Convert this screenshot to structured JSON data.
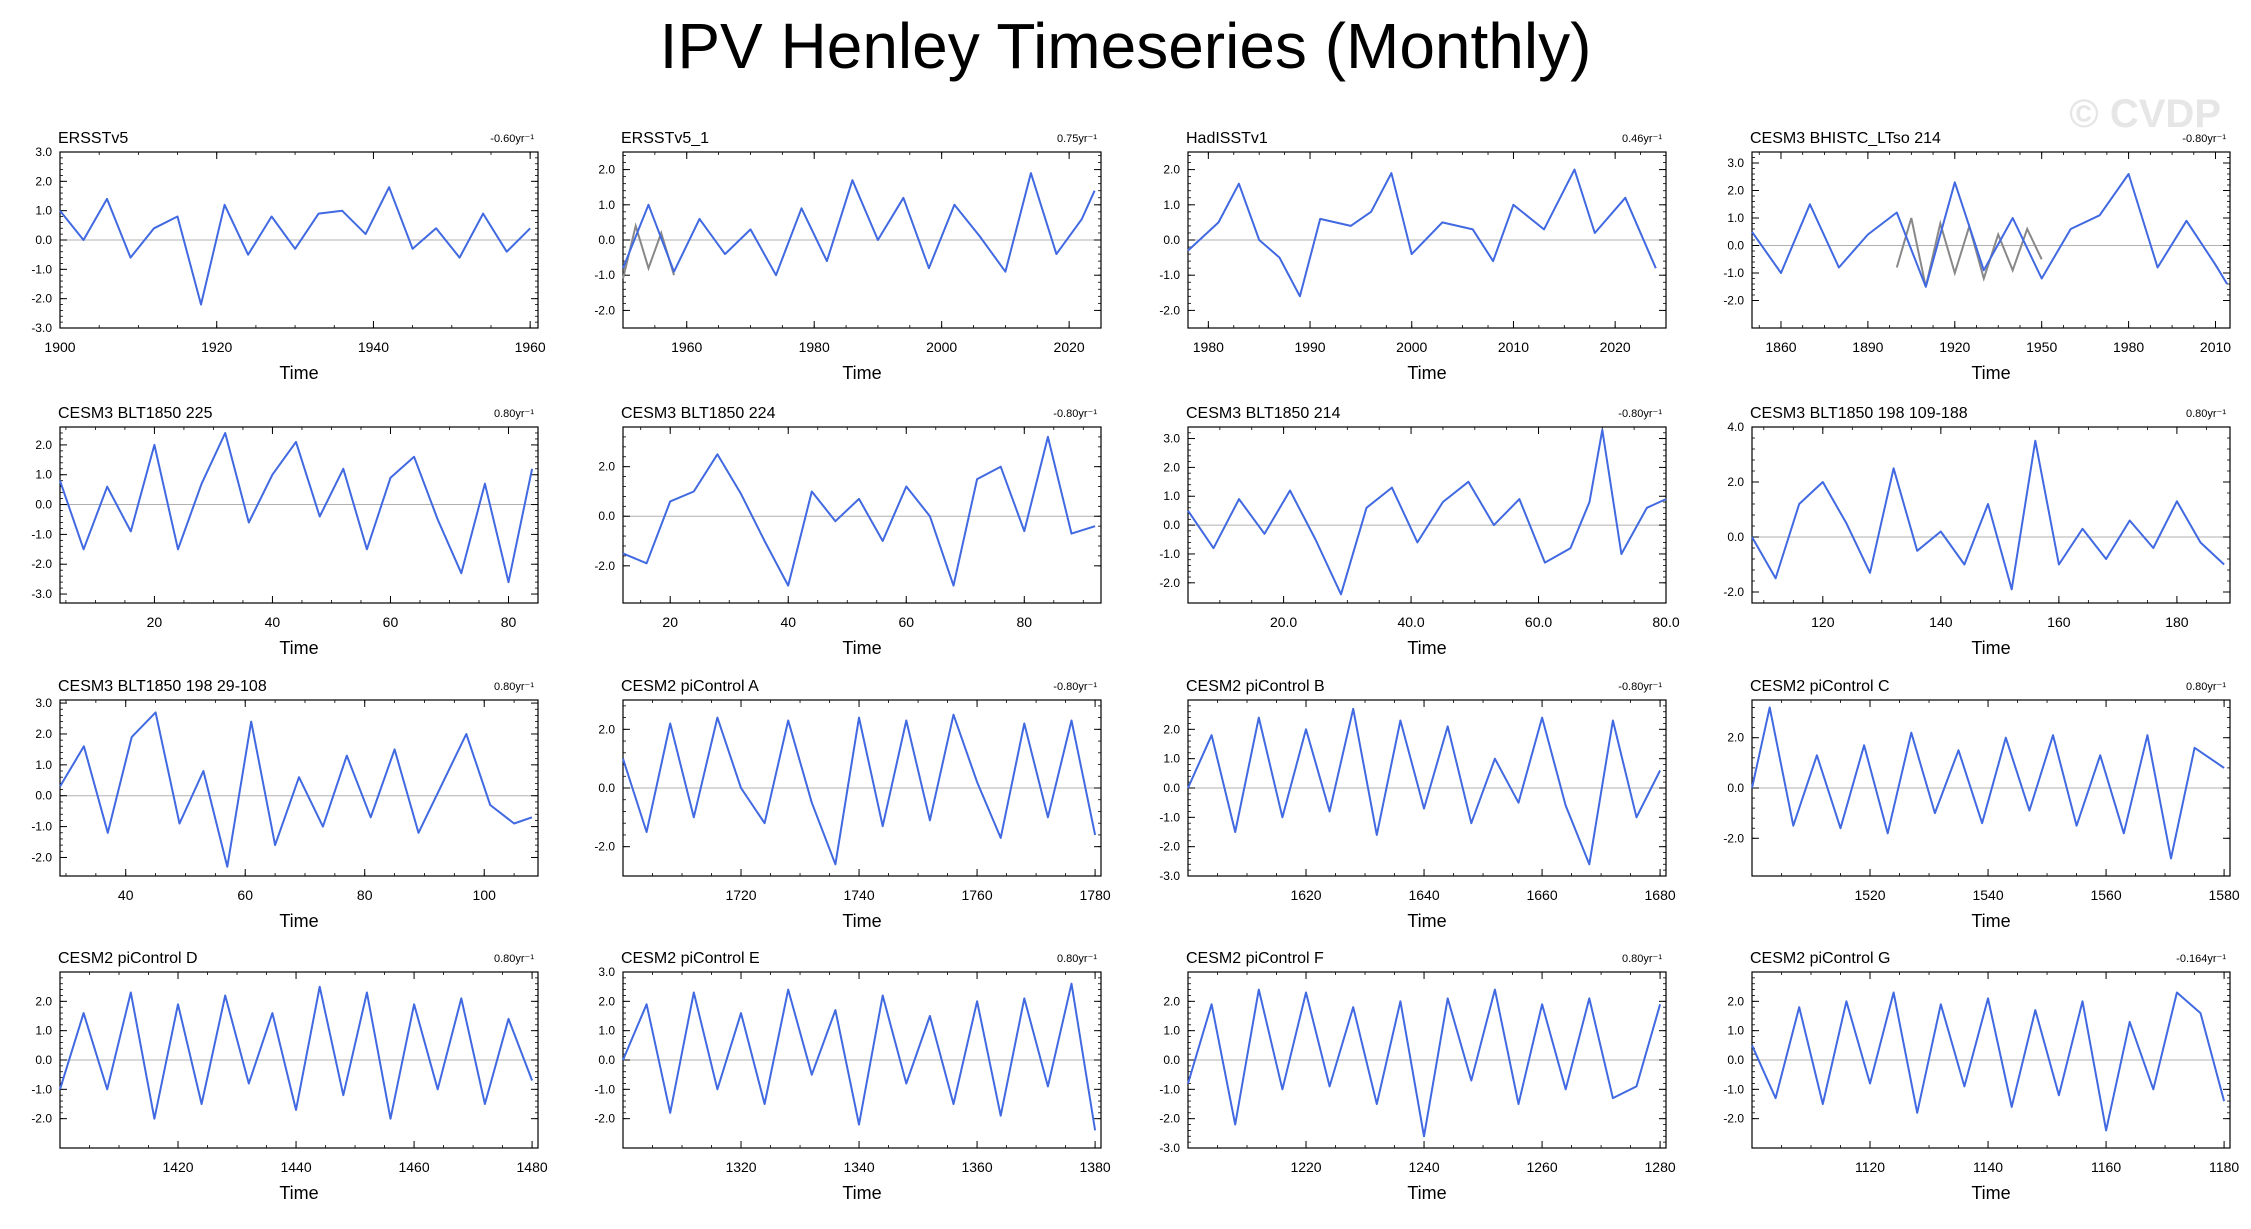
{
  "title": "IPV Henley Timeseries (Monthly)",
  "watermark": "© CVDP",
  "colors": {
    "primary": "#4169e1",
    "secondary": "#888888",
    "zero_line": "#b0b0b0"
  },
  "chart_data": [
    {
      "type": "line",
      "label": "ERSSTv5",
      "trend": "-0.60yr⁻¹",
      "xlabel": "Time",
      "xlim": [
        1900,
        1961
      ],
      "ylim": [
        -3.0,
        3.0
      ],
      "xticks": [
        1900,
        1920,
        1940,
        1960
      ],
      "yticks": [
        -3.0,
        -2.0,
        -1.0,
        0.0,
        1.0,
        2.0,
        3.0
      ],
      "ytick_fmt": 1,
      "xtick_fmt": 0,
      "x": [
        1900,
        1903,
        1906,
        1909,
        1912,
        1915,
        1918,
        1921,
        1924,
        1927,
        1930,
        1933,
        1936,
        1939,
        1942,
        1945,
        1948,
        1951,
        1954,
        1957,
        1960
      ],
      "y": [
        1.0,
        0.0,
        1.4,
        -0.6,
        0.4,
        0.8,
        -2.2,
        1.2,
        -0.5,
        0.8,
        -0.3,
        0.9,
        1.0,
        0.2,
        1.8,
        -0.3,
        0.4,
        -0.6,
        0.9,
        -0.4,
        0.4
      ]
    },
    {
      "type": "line",
      "label": "ERSSTv5_1",
      "trend": "0.75yr⁻¹",
      "xlabel": "Time",
      "xlim": [
        1950,
        2025
      ],
      "ylim": [
        -2.5,
        2.5
      ],
      "xticks": [
        1960,
        1980,
        2000,
        2020
      ],
      "yticks": [
        -2.0,
        -1.0,
        0.0,
        1.0,
        2.0
      ],
      "ytick_fmt": 1,
      "xtick_fmt": 0,
      "x": [
        1950,
        1954,
        1958,
        1962,
        1966,
        1970,
        1974,
        1978,
        1982,
        1986,
        1990,
        1994,
        1998,
        2002,
        2006,
        2010,
        2014,
        2018,
        2022,
        2024
      ],
      "y": [
        -0.8,
        1.0,
        -0.9,
        0.6,
        -0.4,
        0.3,
        -1.0,
        0.9,
        -0.6,
        1.7,
        0.0,
        1.2,
        -0.8,
        1.0,
        0.1,
        -0.9,
        1.9,
        -0.4,
        0.6,
        1.4
      ],
      "secondary": {
        "x": [
          1950,
          1952,
          1954,
          1956,
          1958
        ],
        "y": [
          -1.1,
          0.4,
          -0.8,
          0.2,
          -1.0
        ]
      }
    },
    {
      "type": "line",
      "label": "HadISSTv1",
      "trend": "0.46yr⁻¹",
      "xlabel": "Time",
      "xlim": [
        1978,
        2025
      ],
      "ylim": [
        -2.5,
        2.5
      ],
      "xticks": [
        1980,
        1990,
        2000,
        2010,
        2020
      ],
      "yticks": [
        -2.0,
        -1.0,
        0.0,
        1.0,
        2.0
      ],
      "ytick_fmt": 1,
      "xtick_fmt": 0,
      "x": [
        1978,
        1981,
        1983,
        1985,
        1987,
        1989,
        1991,
        1994,
        1996,
        1998,
        2000,
        2003,
        2006,
        2008,
        2010,
        2013,
        2016,
        2018,
        2021,
        2024
      ],
      "y": [
        -0.3,
        0.5,
        1.6,
        0.0,
        -0.5,
        -1.6,
        0.6,
        0.4,
        0.8,
        1.9,
        -0.4,
        0.5,
        0.3,
        -0.6,
        1.0,
        0.3,
        2.0,
        0.2,
        1.2,
        -0.8
      ]
    },
    {
      "type": "line",
      "label": "CESM3 BHISTC_LTso 214",
      "trend": "-0.80yr⁻¹",
      "xlabel": "Time",
      "xlim": [
        1850,
        2015
      ],
      "ylim": [
        -3.0,
        3.4
      ],
      "xticks": [
        1860,
        1890,
        1920,
        1950,
        1980,
        2010
      ],
      "yticks": [
        -2.0,
        -1.0,
        0.0,
        1.0,
        2.0,
        3.0
      ],
      "ytick_fmt": 1,
      "xtick_fmt": 0,
      "x": [
        1850,
        1860,
        1870,
        1880,
        1890,
        1900,
        1910,
        1920,
        1930,
        1940,
        1950,
        1960,
        1970,
        1980,
        1990,
        2000,
        2010,
        2014
      ],
      "y": [
        0.5,
        -1.0,
        1.5,
        -0.8,
        0.4,
        1.2,
        -1.5,
        2.3,
        -0.9,
        1.0,
        -1.2,
        0.6,
        1.1,
        2.6,
        -0.8,
        0.9,
        -0.7,
        -1.4
      ],
      "secondary": {
        "x": [
          1900,
          1905,
          1910,
          1915,
          1920,
          1925,
          1930,
          1935,
          1940,
          1945,
          1950
        ],
        "y": [
          -0.8,
          1.0,
          -1.5,
          0.8,
          -1.0,
          0.7,
          -1.2,
          0.4,
          -0.9,
          0.6,
          -0.5
        ]
      }
    },
    {
      "type": "line",
      "label": "CESM3 BLT1850 225",
      "trend": "0.80yr⁻¹",
      "xlabel": "Time",
      "xlim": [
        4,
        85
      ],
      "ylim": [
        -3.3,
        2.6
      ],
      "xticks": [
        20,
        40,
        60,
        80
      ],
      "yticks": [
        -3.0,
        -2.0,
        -1.0,
        0.0,
        1.0,
        2.0
      ],
      "ytick_fmt": 1,
      "xtick_fmt": 0,
      "x": [
        4,
        8,
        12,
        16,
        20,
        24,
        28,
        32,
        36,
        40,
        44,
        48,
        52,
        56,
        60,
        64,
        68,
        72,
        76,
        80,
        84
      ],
      "y": [
        0.8,
        -1.5,
        0.6,
        -0.9,
        2.0,
        -1.5,
        0.7,
        2.4,
        -0.6,
        1.0,
        2.1,
        -0.4,
        1.2,
        -1.5,
        0.9,
        1.6,
        -0.5,
        -2.3,
        0.7,
        -2.6,
        1.2
      ]
    },
    {
      "type": "line",
      "label": "CESM3 BLT1850 224",
      "trend": "-0.80yr⁻¹",
      "xlabel": "Time",
      "xlim": [
        12,
        93
      ],
      "ylim": [
        -3.5,
        3.6
      ],
      "xticks": [
        20,
        40,
        60,
        80
      ],
      "yticks": [
        -2.0,
        0.0,
        2.0
      ],
      "ytick_fmt": 1,
      "xtick_fmt": 0,
      "x": [
        12,
        16,
        20,
        24,
        28,
        32,
        36,
        40,
        44,
        48,
        52,
        56,
        60,
        64,
        68,
        72,
        76,
        80,
        84,
        88,
        92
      ],
      "y": [
        -1.5,
        -1.9,
        0.6,
        1.0,
        2.5,
        0.9,
        -1.0,
        -2.8,
        1.0,
        -0.2,
        0.7,
        -1.0,
        1.2,
        0.0,
        -2.8,
        1.5,
        2.0,
        -0.6,
        3.2,
        -0.7,
        -0.4
      ]
    },
    {
      "type": "line",
      "label": "CESM3 BLT1850 214",
      "trend": "-0.80yr⁻¹",
      "xlabel": "Time",
      "xlim": [
        5,
        80
      ],
      "ylim": [
        -2.7,
        3.4
      ],
      "xticks": [
        20.0,
        40.0,
        60.0,
        80.0
      ],
      "yticks": [
        -2.0,
        -1.0,
        0.0,
        1.0,
        2.0,
        3.0
      ],
      "ytick_fmt": 1,
      "xtick_fmt": 1,
      "x": [
        5,
        9,
        13,
        17,
        21,
        25,
        29,
        33,
        37,
        41,
        45,
        49,
        53,
        57,
        61,
        65,
        68,
        70,
        73,
        77,
        80
      ],
      "y": [
        0.5,
        -0.8,
        0.9,
        -0.3,
        1.2,
        -0.5,
        -2.4,
        0.6,
        1.3,
        -0.6,
        0.8,
        1.5,
        0.0,
        0.9,
        -1.3,
        -0.8,
        0.8,
        3.3,
        -1.0,
        0.6,
        0.9
      ]
    },
    {
      "type": "line",
      "label": "CESM3 BLT1850 198 109-188",
      "trend": "0.80yr⁻¹",
      "xlabel": "Time",
      "xlim": [
        108,
        189
      ],
      "ylim": [
        -2.4,
        4.0
      ],
      "xticks": [
        120,
        140,
        160,
        180
      ],
      "yticks": [
        -2.0,
        0.0,
        2.0,
        4.0
      ],
      "ytick_fmt": 1,
      "xtick_fmt": 0,
      "x": [
        108,
        112,
        116,
        120,
        124,
        128,
        132,
        136,
        140,
        144,
        148,
        152,
        156,
        160,
        164,
        168,
        172,
        176,
        180,
        184,
        188
      ],
      "y": [
        0.0,
        -1.5,
        1.2,
        2.0,
        0.5,
        -1.3,
        2.5,
        -0.5,
        0.2,
        -1.0,
        1.2,
        -1.9,
        3.5,
        -1.0,
        0.3,
        -0.8,
        0.6,
        -0.4,
        1.3,
        -0.2,
        -1.0
      ]
    },
    {
      "type": "line",
      "label": "CESM3 BLT1850 198 29-108",
      "trend": "0.80yr⁻¹",
      "xlabel": "Time",
      "xlim": [
        29,
        109
      ],
      "ylim": [
        -2.6,
        3.1
      ],
      "xticks": [
        40,
        60,
        80,
        100
      ],
      "yticks": [
        -2.0,
        -1.0,
        0.0,
        1.0,
        2.0,
        3.0
      ],
      "ytick_fmt": 1,
      "xtick_fmt": 0,
      "x": [
        29,
        33,
        37,
        41,
        45,
        49,
        53,
        57,
        61,
        65,
        69,
        73,
        77,
        81,
        85,
        89,
        93,
        97,
        101,
        105,
        108
      ],
      "y": [
        0.3,
        1.6,
        -1.2,
        1.9,
        2.7,
        -0.9,
        0.8,
        -2.3,
        2.4,
        -1.6,
        0.6,
        -1.0,
        1.3,
        -0.7,
        1.5,
        -1.2,
        0.4,
        2.0,
        -0.3,
        -0.9,
        -0.7
      ]
    },
    {
      "type": "line",
      "label": "CESM2 piControl A",
      "trend": "-0.80yr⁻¹",
      "xlabel": "Time",
      "xlim": [
        1700,
        1781
      ],
      "ylim": [
        -3.0,
        3.0
      ],
      "xticks": [
        1720,
        1740,
        1760,
        1780
      ],
      "yticks": [
        -2.0,
        0.0,
        2.0
      ],
      "ytick_fmt": 1,
      "xtick_fmt": 0,
      "x": [
        1700,
        1704,
        1708,
        1712,
        1716,
        1720,
        1724,
        1728,
        1732,
        1736,
        1740,
        1744,
        1748,
        1752,
        1756,
        1760,
        1764,
        1768,
        1772,
        1776,
        1780
      ],
      "y": [
        1.0,
        -1.5,
        2.2,
        -1.0,
        2.4,
        0.0,
        -1.2,
        2.3,
        -0.5,
        -2.6,
        2.4,
        -1.3,
        2.3,
        -1.1,
        2.5,
        0.2,
        -1.7,
        2.2,
        -1.0,
        2.3,
        -1.6
      ]
    },
    {
      "type": "line",
      "label": "CESM2 piControl B",
      "trend": "-0.80yr⁻¹",
      "xlabel": "Time",
      "xlim": [
        1600,
        1681
      ],
      "ylim": [
        -3.0,
        3.0
      ],
      "xticks": [
        1620,
        1640,
        1660,
        1680
      ],
      "yticks": [
        -3.0,
        -2.0,
        -1.0,
        0.0,
        1.0,
        2.0
      ],
      "ytick_fmt": 1,
      "xtick_fmt": 0,
      "x": [
        1600,
        1604,
        1608,
        1612,
        1616,
        1620,
        1624,
        1628,
        1632,
        1636,
        1640,
        1644,
        1648,
        1652,
        1656,
        1660,
        1664,
        1668,
        1672,
        1676,
        1680
      ],
      "y": [
        0.0,
        1.8,
        -1.5,
        2.4,
        -1.0,
        2.0,
        -0.8,
        2.7,
        -1.6,
        2.3,
        -0.7,
        2.1,
        -1.2,
        1.0,
        -0.5,
        2.4,
        -0.6,
        -2.6,
        2.3,
        -1.0,
        0.6
      ]
    },
    {
      "type": "line",
      "label": "CESM2 piControl C",
      "trend": "0.80yr⁻¹",
      "xlabel": "Time",
      "xlim": [
        1500,
        1581
      ],
      "ylim": [
        -3.5,
        3.5
      ],
      "xticks": [
        1520,
        1540,
        1560,
        1580
      ],
      "yticks": [
        -2.0,
        0.0,
        2.0
      ],
      "ytick_fmt": 1,
      "xtick_fmt": 0,
      "x": [
        1500,
        1503,
        1507,
        1511,
        1515,
        1519,
        1523,
        1527,
        1531,
        1535,
        1539,
        1543,
        1547,
        1551,
        1555,
        1559,
        1563,
        1567,
        1571,
        1575,
        1580
      ],
      "y": [
        0.0,
        3.2,
        -1.5,
        1.3,
        -1.6,
        1.7,
        -1.8,
        2.2,
        -1.0,
        1.5,
        -1.4,
        2.0,
        -0.9,
        2.1,
        -1.5,
        1.3,
        -1.8,
        2.1,
        -2.8,
        1.6,
        0.8
      ]
    },
    {
      "type": "line",
      "label": "CESM2 piControl D",
      "trend": "0.80yr⁻¹",
      "xlabel": "Time",
      "xlim": [
        1400,
        1481
      ],
      "ylim": [
        -3.0,
        3.0
      ],
      "xticks": [
        1420,
        1440,
        1460,
        1480
      ],
      "yticks": [
        -2.0,
        -1.0,
        0.0,
        1.0,
        2.0
      ],
      "ytick_fmt": 1,
      "xtick_fmt": 0,
      "x": [
        1400,
        1404,
        1408,
        1412,
        1416,
        1420,
        1424,
        1428,
        1432,
        1436,
        1440,
        1444,
        1448,
        1452,
        1456,
        1460,
        1464,
        1468,
        1472,
        1476,
        1480
      ],
      "y": [
        -1.0,
        1.6,
        -1.0,
        2.3,
        -2.0,
        1.9,
        -1.5,
        2.2,
        -0.8,
        1.6,
        -1.7,
        2.5,
        -1.2,
        2.3,
        -2.0,
        1.9,
        -1.0,
        2.1,
        -1.5,
        1.4,
        -0.7
      ]
    },
    {
      "type": "line",
      "label": "CESM2 piControl E",
      "trend": "0.80yr⁻¹",
      "xlabel": "Time",
      "xlim": [
        1300,
        1381
      ],
      "ylim": [
        -3.0,
        3.0
      ],
      "xticks": [
        1320,
        1340,
        1360,
        1380
      ],
      "yticks": [
        -2.0,
        -1.0,
        0.0,
        1.0,
        2.0,
        3.0
      ],
      "ytick_fmt": 1,
      "xtick_fmt": 0,
      "x": [
        1300,
        1304,
        1308,
        1312,
        1316,
        1320,
        1324,
        1328,
        1332,
        1336,
        1340,
        1344,
        1348,
        1352,
        1356,
        1360,
        1364,
        1368,
        1372,
        1376,
        1380
      ],
      "y": [
        0.0,
        1.9,
        -1.8,
        2.3,
        -1.0,
        1.6,
        -1.5,
        2.4,
        -0.5,
        1.7,
        -2.2,
        2.2,
        -0.8,
        1.5,
        -1.5,
        2.0,
        -1.9,
        2.1,
        -0.9,
        2.6,
        -2.4
      ]
    },
    {
      "type": "line",
      "label": "CESM2 piControl F",
      "trend": "0.80yr⁻¹",
      "xlabel": "Time",
      "xlim": [
        1200,
        1281
      ],
      "ylim": [
        -3.0,
        3.0
      ],
      "xticks": [
        1220,
        1240,
        1260,
        1280
      ],
      "yticks": [
        -3.0,
        -2.0,
        -1.0,
        0.0,
        1.0,
        2.0
      ],
      "ytick_fmt": 1,
      "xtick_fmt": 0,
      "x": [
        1200,
        1204,
        1208,
        1212,
        1216,
        1220,
        1224,
        1228,
        1232,
        1236,
        1240,
        1244,
        1248,
        1252,
        1256,
        1260,
        1264,
        1268,
        1272,
        1276,
        1280
      ],
      "y": [
        -0.8,
        1.9,
        -2.2,
        2.4,
        -1.0,
        2.3,
        -0.9,
        1.8,
        -1.5,
        2.0,
        -2.6,
        2.1,
        -0.7,
        2.4,
        -1.5,
        1.9,
        -1.0,
        2.1,
        -1.3,
        -0.9,
        1.9
      ]
    },
    {
      "type": "line",
      "label": "CESM2 piControl G",
      "trend": "-0.164yr⁻¹",
      "xlabel": "Time",
      "xlim": [
        1100,
        1181
      ],
      "ylim": [
        -3.0,
        3.0
      ],
      "xticks": [
        1120,
        1140,
        1160,
        1180
      ],
      "yticks": [
        -2.0,
        -1.0,
        0.0,
        1.0,
        2.0
      ],
      "ytick_fmt": 1,
      "xtick_fmt": 0,
      "x": [
        1100,
        1104,
        1108,
        1112,
        1116,
        1120,
        1124,
        1128,
        1132,
        1136,
        1140,
        1144,
        1148,
        1152,
        1156,
        1160,
        1164,
        1168,
        1172,
        1176,
        1180
      ],
      "y": [
        0.5,
        -1.3,
        1.8,
        -1.5,
        2.0,
        -0.8,
        2.3,
        -1.8,
        1.9,
        -0.9,
        2.1,
        -1.6,
        1.7,
        -1.2,
        2.0,
        -2.4,
        1.3,
        -1.0,
        2.3,
        1.6,
        -1.4
      ]
    }
  ]
}
